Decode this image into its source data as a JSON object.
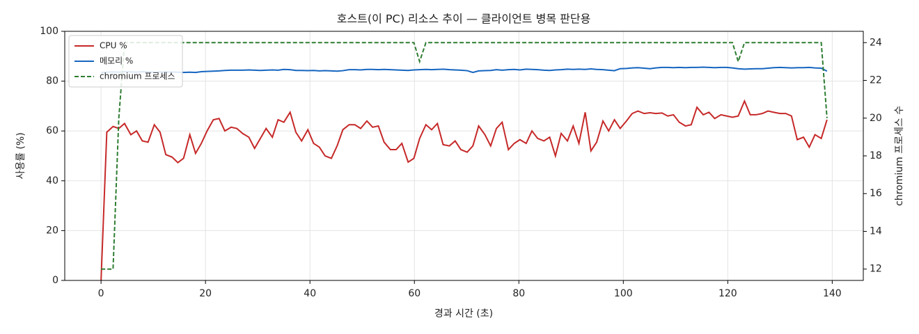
{
  "chart_data": {
    "type": "line",
    "title": "호스트(이 PC) 리소스 추이 — 클라이언트 병목 판단용",
    "xlabel": "경과 시간 (초)",
    "ylabel": "사용률 (%)",
    "y2label": "chromium 프로세스 수",
    "x": [
      0,
      1.1,
      2.3,
      3.4,
      4.5,
      5.7,
      6.8,
      7.9,
      9,
      10.2,
      11.3,
      12.4,
      13.6,
      14.7,
      15.8,
      17,
      18.1,
      19.2,
      20.3,
      21.5,
      22.6,
      23.7,
      24.9,
      26,
      27.1,
      28.3,
      29.4,
      30.5,
      31.6,
      32.8,
      33.9,
      35,
      36.2,
      37.3,
      38.4,
      39.6,
      40.7,
      41.8,
      42.9,
      44.1,
      45.2,
      46.3,
      47.5,
      48.6,
      49.7,
      50.9,
      52,
      53.1,
      54.2,
      55.4,
      56.5,
      57.6,
      58.8,
      59.9,
      61,
      62.2,
      63.3,
      64.4,
      65.5,
      66.7,
      67.8,
      68.9,
      70.1,
      71.2,
      72.3,
      73.5,
      74.6,
      75.7,
      76.8,
      78,
      79.1,
      80.2,
      81.4,
      82.5,
      83.6,
      84.8,
      85.9,
      87,
      88.1,
      89.3,
      90.4,
      91.5,
      92.7,
      93.8,
      94.9,
      96.1,
      97.2,
      98.3,
      99.4,
      100.6,
      101.7,
      102.8,
      104,
      105.1,
      106.2,
      107.4,
      108.5,
      109.6,
      110.7,
      111.9,
      113,
      114.1,
      115.3,
      116.4,
      117.5,
      118.7,
      119.8,
      120.9,
      122,
      123.2,
      124.3,
      125.4,
      126.6,
      127.7,
      128.8,
      130,
      131.1,
      132.2,
      133.3,
      134.5,
      135.6,
      136.7,
      137.9,
      139
    ],
    "series": [
      {
        "name": "CPU %",
        "color": "#c62828",
        "axis": "y",
        "dash": "solid",
        "values": [
          0,
          59.5,
          61.8,
          61,
          63,
          58.5,
          60,
          56,
          55.5,
          62.5,
          59.5,
          50.5,
          49.5,
          47.3,
          49,
          58.5,
          51,
          55,
          60,
          64.5,
          65,
          60,
          61.5,
          61,
          59,
          57.5,
          53,
          57,
          61,
          57.5,
          64.5,
          63.5,
          67.5,
          59.5,
          56,
          60.5,
          55,
          53.5,
          50,
          49,
          54,
          60.5,
          62.5,
          62.5,
          61,
          64,
          61.5,
          62,
          55.5,
          52.5,
          52.5,
          55,
          47.5,
          49,
          57,
          62.5,
          60.5,
          63,
          54.5,
          54,
          56,
          52.5,
          51.5,
          54,
          62,
          58.5,
          54,
          61,
          63.5,
          52.5,
          55,
          56.5,
          55,
          60,
          57,
          56,
          57.5,
          50,
          59,
          56,
          62,
          55,
          67.5,
          52,
          55.5,
          64,
          60,
          64.5,
          61,
          64,
          67,
          68,
          67,
          67.3,
          67,
          67.2,
          66,
          66.5,
          63.5,
          62,
          62.5,
          69.5,
          66.5,
          67.5,
          65,
          66.5,
          66,
          65.5,
          66,
          72,
          66.5,
          66.5,
          67,
          68,
          67.5,
          67,
          67,
          66,
          56.5,
          57.5,
          53.5,
          58.5,
          57,
          64.5
        ]
      },
      {
        "name": "메모리 %",
        "color": "#1565c0",
        "axis": "y",
        "dash": "solid",
        "values": [
          83.5,
          83.6,
          83.7,
          83.6,
          83.8,
          83.7,
          83.6,
          83.8,
          83.7,
          83.6,
          83.7,
          83.6,
          83.7,
          83.6,
          83.5,
          83.6,
          83.5,
          83.8,
          83.9,
          84.0,
          84.1,
          84.3,
          84.4,
          84.4,
          84.4,
          84.5,
          84.4,
          84.3,
          84.4,
          84.5,
          84.4,
          84.7,
          84.6,
          84.3,
          84.3,
          84.2,
          84.3,
          84.1,
          84.2,
          84.1,
          84.0,
          84.2,
          84.6,
          84.6,
          84.5,
          84.7,
          84.7,
          84.6,
          84.7,
          84.6,
          84.5,
          84.4,
          84.3,
          84.5,
          84.6,
          84.7,
          84.6,
          84.7,
          84.8,
          84.6,
          84.5,
          84.4,
          84.2,
          83.5,
          84.1,
          84.2,
          84.3,
          84.6,
          84.4,
          84.6,
          84.7,
          84.5,
          84.8,
          84.7,
          84.6,
          84.4,
          84.3,
          84.5,
          84.6,
          84.8,
          84.7,
          84.8,
          84.7,
          84.9,
          84.7,
          84.6,
          84.4,
          84.2,
          85.0,
          85.1,
          85.3,
          85.4,
          85.2,
          85.0,
          85.3,
          85.5,
          85.5,
          85.4,
          85.5,
          85.4,
          85.5,
          85.5,
          85.6,
          85.5,
          85.4,
          85.5,
          85.5,
          85.3,
          85.0,
          84.8,
          84.9,
          85.0,
          85.0,
          85.2,
          85.4,
          85.5,
          85.4,
          85.3,
          85.4,
          85.4,
          85.5,
          85.3,
          85.2,
          84.0
        ]
      },
      {
        "name": "chromium 프로세스",
        "color": "#2e7d32",
        "axis": "y2",
        "dash": "dashed",
        "values": [
          12,
          12,
          12,
          20,
          24,
          24,
          24,
          24,
          24,
          24,
          24,
          24,
          24,
          24,
          24,
          24,
          24,
          24,
          24,
          24,
          24,
          24,
          24,
          24,
          24,
          24,
          24,
          24,
          24,
          24,
          24,
          24,
          24,
          24,
          24,
          24,
          24,
          24,
          24,
          24,
          24,
          24,
          24,
          24,
          24,
          24,
          24,
          24,
          24,
          24,
          24,
          24,
          24,
          24,
          23,
          24,
          24,
          24,
          24,
          24,
          24,
          24,
          24,
          24,
          24,
          24,
          24,
          24,
          24,
          24,
          24,
          24,
          24,
          24,
          24,
          24,
          24,
          24,
          24,
          24,
          24,
          24,
          24,
          24,
          24,
          24,
          24,
          24,
          24,
          24,
          24,
          24,
          24,
          24,
          24,
          24,
          24,
          24,
          24,
          24,
          24,
          24,
          24,
          24,
          24,
          24,
          24,
          24,
          23,
          24,
          24,
          24,
          24,
          24,
          24,
          24,
          24,
          24,
          24,
          24,
          24,
          24,
          24,
          20
        ]
      }
    ],
    "xlim": [
      -6.95,
      145.95
    ],
    "xticks": [
      0,
      20,
      40,
      60,
      80,
      100,
      120,
      140
    ],
    "ylim": [
      0,
      100
    ],
    "yticks": [
      0,
      20,
      40,
      60,
      80,
      100
    ],
    "y2lim": [
      11.4,
      24.6
    ],
    "y2ticks": [
      12,
      14,
      16,
      18,
      20,
      22,
      24
    ],
    "grid": true,
    "legend": "upper-left"
  }
}
